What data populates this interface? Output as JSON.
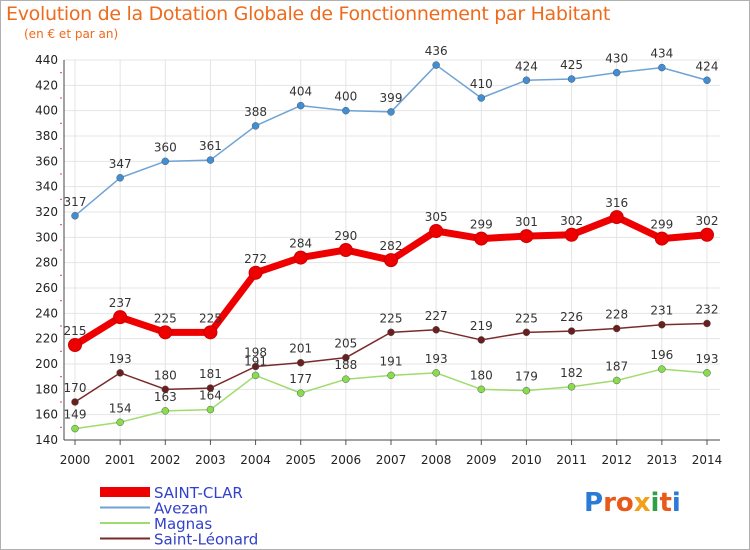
{
  "title": "Evolution de la Dotation Globale de Fonctionnement par Habitant",
  "subtitle": "(en € et par an)",
  "logo_text": "Proxiti",
  "colors": {
    "title": "#ee6a1c",
    "grid": "#e4e4e4",
    "legend_text": "#3341c9"
  },
  "chart_data": {
    "type": "line",
    "x": [
      "2000",
      "2001",
      "2002",
      "2003",
      "2004",
      "2005",
      "2006",
      "2007",
      "2008",
      "2009",
      "2010",
      "2011",
      "2012",
      "2013",
      "2014"
    ],
    "ylim": [
      140,
      440
    ],
    "yticks": [
      140,
      160,
      180,
      200,
      220,
      240,
      260,
      280,
      300,
      320,
      340,
      360,
      380,
      400,
      420,
      440
    ],
    "grid": true,
    "legend_position": "bottom-left",
    "series": [
      {
        "name": "SAINT-CLAR",
        "color": "#ee0000",
        "marker": "#ee0000",
        "width": 7,
        "values": [
          215,
          237,
          225,
          225,
          272,
          284,
          290,
          282,
          305,
          299,
          301,
          302,
          316,
          299,
          302
        ]
      },
      {
        "name": "Avezan",
        "color": "#6fa3d5",
        "marker": "#3f8ed8",
        "width": 1.5,
        "values": [
          317,
          347,
          360,
          361,
          388,
          404,
          400,
          399,
          436,
          410,
          424,
          425,
          430,
          434,
          424
        ]
      },
      {
        "name": "Magnas",
        "color": "#9fdc6e",
        "marker": "#88dd4c",
        "width": 1.5,
        "values": [
          149,
          154,
          163,
          164,
          191,
          177,
          188,
          191,
          193,
          180,
          179,
          182,
          187,
          196,
          193
        ]
      },
      {
        "name": "Saint-Léonard",
        "color": "#7a2a2a",
        "marker": "#6a1f1f",
        "width": 1.5,
        "values": [
          170,
          193,
          180,
          181,
          198,
          201,
          205,
          225,
          227,
          219,
          225,
          226,
          228,
          231,
          232
        ]
      }
    ]
  }
}
